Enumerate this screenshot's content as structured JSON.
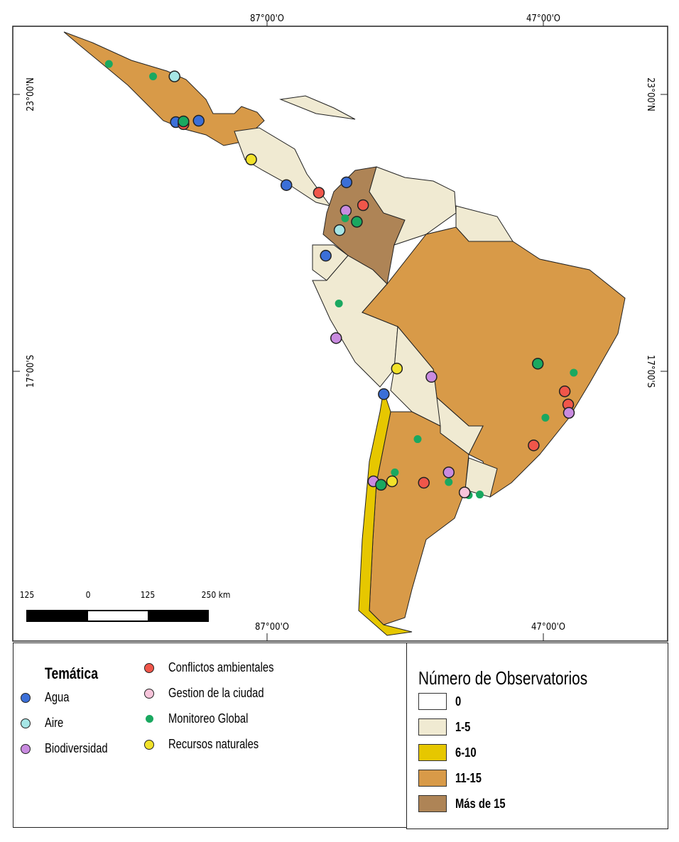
{
  "map": {
    "grid_labels": {
      "lon_left": "87°00'O",
      "lon_right": "47°00'O",
      "lat_top": "23°00'N",
      "lat_bottom": "17°00'S"
    },
    "scale_bar": {
      "labels": [
        "125",
        "0",
        "125",
        "250 km"
      ]
    },
    "classes": {
      "0": "#ffffff",
      "1-5": "#f0ead2",
      "6-10": "#e6c700",
      "11-15": "#d89a48",
      "Más de 15": "#ae8456"
    },
    "countries": [
      {
        "name": "Mexico",
        "class": "11-15"
      },
      {
        "name": "Central America",
        "class": "1-5"
      },
      {
        "name": "Cuba",
        "class": "1-5"
      },
      {
        "name": "Colombia",
        "class": "Más de 15"
      },
      {
        "name": "Venezuela",
        "class": "1-5"
      },
      {
        "name": "Guyana",
        "class": "1-5"
      },
      {
        "name": "Ecuador",
        "class": "1-5"
      },
      {
        "name": "Peru",
        "class": "1-5"
      },
      {
        "name": "Brazil",
        "class": "11-15"
      },
      {
        "name": "Bolivia",
        "class": "1-5"
      },
      {
        "name": "Paraguay",
        "class": "1-5"
      },
      {
        "name": "Argentina",
        "class": "11-15"
      },
      {
        "name": "Uruguay",
        "class": "1-5"
      },
      {
        "name": "Chile",
        "class": "6-10"
      }
    ],
    "observatories": [
      {
        "lon": -109.9,
        "lat": 27.4,
        "cat": "monitoreo"
      },
      {
        "lon": -103.5,
        "lat": 25.6,
        "cat": "monitoreo"
      },
      {
        "lon": -100.4,
        "lat": 25.6,
        "cat": "aire"
      },
      {
        "lon": -100.2,
        "lat": 19.0,
        "cat": "agua"
      },
      {
        "lon": -99.1,
        "lat": 18.7,
        "cat": "conflictos"
      },
      {
        "lon": -99.1,
        "lat": 19.1,
        "cat": "monitoreo_big"
      },
      {
        "lon": -96.9,
        "lat": 19.2,
        "cat": "agua"
      },
      {
        "lon": -89.3,
        "lat": 13.6,
        "cat": "recursos"
      },
      {
        "lon": -84.2,
        "lat": 9.9,
        "cat": "agua"
      },
      {
        "lon": -79.5,
        "lat": 8.8,
        "cat": "conflictos"
      },
      {
        "lon": -75.5,
        "lat": 10.3,
        "cat": "agua"
      },
      {
        "lon": -73.1,
        "lat": 7.0,
        "cat": "conflictos"
      },
      {
        "lon": -75.6,
        "lat": 6.2,
        "cat": "biodiversidad"
      },
      {
        "lon": -75.7,
        "lat": 5.1,
        "cat": "monitoreo"
      },
      {
        "lon": -74.0,
        "lat": 4.6,
        "cat": "monitoreo_big"
      },
      {
        "lon": -76.5,
        "lat": 3.4,
        "cat": "aire"
      },
      {
        "lon": -78.5,
        "lat": -0.3,
        "cat": "agua"
      },
      {
        "lon": -76.6,
        "lat": -7.2,
        "cat": "monitoreo"
      },
      {
        "lon": -77.0,
        "lat": -12.2,
        "cat": "biodiversidad"
      },
      {
        "lon": -68.2,
        "lat": -16.6,
        "cat": "recursos"
      },
      {
        "lon": -63.2,
        "lat": -17.8,
        "cat": "biodiversidad"
      },
      {
        "lon": -70.1,
        "lat": -20.3,
        "cat": "agua"
      },
      {
        "lon": -47.8,
        "lat": -15.9,
        "cat": "monitoreo_big"
      },
      {
        "lon": -42.6,
        "lat": -17.2,
        "cat": "monitoreo"
      },
      {
        "lon": -43.9,
        "lat": -19.9,
        "cat": "conflictos"
      },
      {
        "lon": -43.4,
        "lat": -21.8,
        "cat": "conflictos"
      },
      {
        "lon": -43.3,
        "lat": -23.0,
        "cat": "biodiversidad"
      },
      {
        "lon": -46.7,
        "lat": -23.7,
        "cat": "monitoreo"
      },
      {
        "lon": -48.4,
        "lat": -27.7,
        "cat": "conflictos"
      },
      {
        "lon": -65.2,
        "lat": -26.8,
        "cat": "monitoreo"
      },
      {
        "lon": -68.5,
        "lat": -31.6,
        "cat": "monitoreo"
      },
      {
        "lon": -60.7,
        "lat": -31.6,
        "cat": "biodiversidad"
      },
      {
        "lon": -60.7,
        "lat": -33.0,
        "cat": "monitoreo"
      },
      {
        "lon": -64.3,
        "lat": -33.1,
        "cat": "conflictos"
      },
      {
        "lon": -71.6,
        "lat": -32.9,
        "cat": "biodiversidad"
      },
      {
        "lon": -70.5,
        "lat": -33.4,
        "cat": "monitoreo_big"
      },
      {
        "lon": -68.9,
        "lat": -32.9,
        "cat": "recursos"
      },
      {
        "lon": -57.8,
        "lat": -34.9,
        "cat": "monitoreo"
      },
      {
        "lon": -58.4,
        "lat": -34.5,
        "cat": "gestion"
      },
      {
        "lon": -56.2,
        "lat": -34.8,
        "cat": "monitoreo"
      }
    ]
  },
  "legend_tematica": {
    "title": "Temática",
    "items": [
      {
        "key": "agua",
        "label": "Agua",
        "color": "#3b6fd8"
      },
      {
        "key": "aire",
        "label": "Aire",
        "color": "#a6e6e6"
      },
      {
        "key": "biodiversidad",
        "label": "Biodiversidad",
        "color": "#c98be0"
      },
      {
        "key": "conflictos",
        "label": "Conflictos ambientales",
        "color": "#f0564a"
      },
      {
        "key": "gestion",
        "label": "Gestion de la ciudad",
        "color": "#f7c4da"
      },
      {
        "key": "monitoreo",
        "label": "Monitoreo Global",
        "color": "#1aa860"
      },
      {
        "key": "recursos",
        "label": "Recursos naturales",
        "color": "#f2e22a"
      }
    ]
  },
  "legend_observatorios": {
    "title": "Número de Observatorios",
    "items": [
      {
        "label": "0",
        "color": "#ffffff"
      },
      {
        "label": "1-5",
        "color": "#f0ead2"
      },
      {
        "label": "6-10",
        "color": "#e6c700"
      },
      {
        "label": "11-15",
        "color": "#d89a48"
      },
      {
        "label": "Más de 15",
        "color": "#ae8456"
      }
    ]
  }
}
